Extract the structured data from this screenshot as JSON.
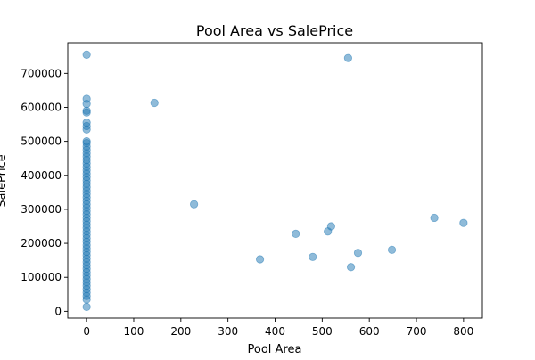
{
  "chart_data": {
    "type": "scatter",
    "title": "Pool Area vs SalePrice",
    "xlabel": "Pool Area",
    "ylabel": "SalePrice",
    "xlim": [
      -40,
      840
    ],
    "ylim": [
      -20000,
      790000
    ],
    "x_ticks": [
      0,
      100,
      200,
      300,
      400,
      500,
      600,
      700,
      800
    ],
    "y_ticks": [
      0,
      100000,
      200000,
      300000,
      400000,
      500000,
      600000,
      700000
    ],
    "grid": false,
    "marker_color": "#1f77b4",
    "marker_alpha": 0.5,
    "series": [
      {
        "points": [
          [
            0,
            755000
          ],
          [
            0,
            625000
          ],
          [
            0,
            610000
          ],
          [
            0,
            590000
          ],
          [
            0,
            585000
          ],
          [
            0,
            555000
          ],
          [
            0,
            545000
          ],
          [
            0,
            535000
          ],
          [
            0,
            500000
          ],
          [
            0,
            495000
          ],
          [
            0,
            485000
          ],
          [
            0,
            475000
          ],
          [
            0,
            465000
          ],
          [
            0,
            455000
          ],
          [
            0,
            445000
          ],
          [
            0,
            435000
          ],
          [
            0,
            425000
          ],
          [
            0,
            415000
          ],
          [
            0,
            405000
          ],
          [
            0,
            395000
          ],
          [
            0,
            385000
          ],
          [
            0,
            375000
          ],
          [
            0,
            365000
          ],
          [
            0,
            355000
          ],
          [
            0,
            345000
          ],
          [
            0,
            335000
          ],
          [
            0,
            325000
          ],
          [
            0,
            315000
          ],
          [
            0,
            305000
          ],
          [
            0,
            295000
          ],
          [
            0,
            285000
          ],
          [
            0,
            275000
          ],
          [
            0,
            265000
          ],
          [
            0,
            255000
          ],
          [
            0,
            245000
          ],
          [
            0,
            235000
          ],
          [
            0,
            225000
          ],
          [
            0,
            215000
          ],
          [
            0,
            205000
          ],
          [
            0,
            195000
          ],
          [
            0,
            185000
          ],
          [
            0,
            175000
          ],
          [
            0,
            165000
          ],
          [
            0,
            155000
          ],
          [
            0,
            145000
          ],
          [
            0,
            135000
          ],
          [
            0,
            125000
          ],
          [
            0,
            115000
          ],
          [
            0,
            105000
          ],
          [
            0,
            95000
          ],
          [
            0,
            85000
          ],
          [
            0,
            75000
          ],
          [
            0,
            65000
          ],
          [
            0,
            55000
          ],
          [
            0,
            45000
          ],
          [
            0,
            35000
          ],
          [
            0,
            13000
          ],
          [
            144,
            613000
          ],
          [
            228,
            315000
          ],
          [
            368,
            153000
          ],
          [
            444,
            228000
          ],
          [
            480,
            160000
          ],
          [
            512,
            235000
          ],
          [
            519,
            250000
          ],
          [
            555,
            745000
          ],
          [
            561,
            130000
          ],
          [
            576,
            172000
          ],
          [
            648,
            181000
          ],
          [
            738,
            275000
          ],
          [
            800,
            260000
          ]
        ]
      }
    ]
  }
}
